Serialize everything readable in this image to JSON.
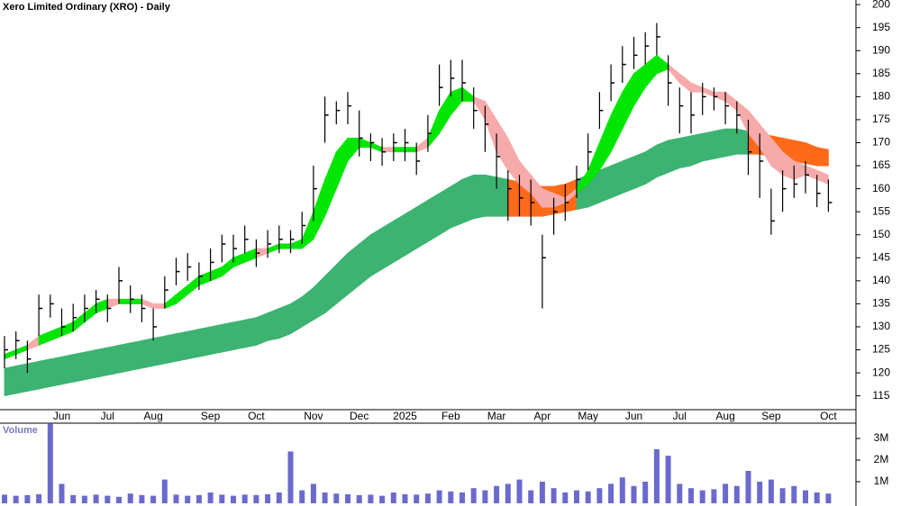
{
  "chart_data": [
    {
      "type": "ohlc",
      "title": "Xero Limited Ordinary (XRO) - Daily",
      "categories": [
        null,
        null,
        null,
        null,
        null,
        "Jun",
        null,
        null,
        null,
        "Jul",
        null,
        null,
        null,
        "Aug",
        null,
        null,
        null,
        null,
        "Sep",
        null,
        null,
        null,
        "Oct",
        null,
        null,
        null,
        null,
        "Nov",
        null,
        null,
        null,
        "Dec",
        null,
        null,
        null,
        "2025",
        null,
        null,
        null,
        "Feb",
        null,
        null,
        null,
        "Mar",
        null,
        null,
        null,
        "Apr",
        null,
        null,
        null,
        "May",
        null,
        null,
        null,
        "Jun",
        null,
        null,
        null,
        "Jul",
        null,
        null,
        null,
        "Aug",
        null,
        null,
        null,
        "Sep",
        null,
        null,
        null,
        null,
        "Oct"
      ],
      "high": [
        128,
        129,
        127,
        137,
        137,
        134,
        135,
        137,
        138,
        137,
        143,
        139,
        137,
        134,
        141,
        145,
        146,
        144,
        147,
        150,
        150,
        152,
        149,
        151,
        152,
        151,
        155,
        165,
        180,
        179,
        181,
        177,
        172,
        171,
        172,
        173,
        170,
        176,
        187,
        188,
        188,
        182,
        178,
        172,
        164,
        163,
        162,
        150,
        158,
        161,
        165,
        172,
        181,
        187,
        191,
        193,
        194,
        196,
        189,
        182,
        181,
        183,
        182,
        181,
        179,
        175,
        172,
        160,
        164,
        165,
        166,
        163,
        162
      ],
      "low": [
        121,
        123,
        120,
        128,
        132,
        128,
        129,
        131,
        133,
        131,
        135,
        133,
        131,
        127,
        134,
        139,
        140,
        138,
        140,
        144,
        144,
        146,
        143,
        145,
        146,
        146,
        148,
        153,
        170,
        174,
        174,
        167,
        166,
        165,
        166,
        166,
        163,
        168,
        178,
        180,
        179,
        173,
        168,
        160,
        153,
        154,
        152,
        134,
        150,
        153,
        158,
        164,
        173,
        179,
        183,
        186,
        187,
        189,
        178,
        172,
        172,
        176,
        177,
        174,
        172,
        163,
        158,
        150,
        155,
        158,
        159,
        156,
        155
      ],
      "close": [
        125,
        127,
        123,
        134,
        135,
        130,
        132,
        134,
        136,
        134,
        140,
        136,
        134,
        130,
        138,
        142,
        143,
        141,
        144,
        148,
        147,
        149,
        146,
        148,
        149,
        149,
        152,
        160,
        176,
        177,
        178,
        171,
        170,
        168,
        170,
        170,
        166,
        172,
        182,
        184,
        183,
        177,
        174,
        167,
        160,
        158,
        157,
        145,
        155,
        157,
        162,
        168,
        177,
        183,
        187,
        189,
        191,
        193,
        183,
        178,
        176,
        180,
        180,
        178,
        176,
        168,
        166,
        153,
        160,
        161,
        163,
        159,
        157
      ],
      "bands": [
        {
          "rise_color": "#3cb371",
          "fall_color": "#ff6a1a",
          "upper": [
            121,
            121.5,
            122,
            122.5,
            123,
            123.5,
            124,
            124.5,
            125,
            125.5,
            126,
            126.5,
            127,
            127.5,
            128,
            128.5,
            129,
            129.5,
            130,
            130.5,
            131,
            131.5,
            132,
            133,
            134,
            135,
            136.5,
            138.5,
            141,
            143.5,
            146,
            148,
            150,
            151.5,
            153,
            154.5,
            156,
            157.5,
            159,
            160.5,
            162,
            163,
            163,
            162.5,
            162,
            161.5,
            161,
            160.5,
            160.5,
            161,
            162,
            163,
            164,
            165,
            166,
            167,
            168,
            169.5,
            170.5,
            171,
            171.5,
            172,
            172.5,
            173,
            173,
            172.5,
            172,
            171.5,
            171,
            170.5,
            170,
            169,
            168.5
          ],
          "lower": [
            115,
            115.5,
            116,
            116.5,
            117,
            117.5,
            118,
            118.5,
            119,
            119.5,
            120,
            120.5,
            121,
            121.5,
            122,
            122.5,
            123,
            123.5,
            124,
            124.5,
            125,
            125.5,
            126,
            127,
            127.5,
            128.5,
            130,
            131.5,
            133,
            135,
            137,
            139,
            141,
            142.5,
            144,
            145.5,
            147,
            148.5,
            150,
            151.5,
            152.5,
            153.5,
            154,
            154,
            154,
            154,
            154,
            154,
            154.5,
            155,
            155.5,
            156,
            157,
            158,
            159,
            160,
            161,
            162.5,
            163.5,
            164.5,
            165,
            166,
            166.5,
            167,
            167.5,
            167.5,
            167.5,
            167,
            166.5,
            166,
            165.5,
            165,
            165
          ]
        },
        {
          "rise_color": "#00e600",
          "fall_color": "#f7aaaa",
          "upper": [
            124,
            125,
            126,
            128,
            129,
            130,
            131,
            133,
            135,
            136,
            136,
            136,
            136,
            135,
            135,
            137,
            139,
            141,
            142,
            143,
            145,
            146,
            147,
            147,
            148,
            148,
            149,
            155,
            162,
            168,
            171,
            171,
            170,
            169,
            169,
            169,
            169,
            171,
            177,
            181,
            182,
            180,
            179,
            175,
            171,
            166,
            163,
            160,
            159,
            158,
            160,
            164,
            170,
            176,
            181,
            185,
            187,
            189,
            187,
            185,
            183,
            182,
            181,
            181,
            179,
            177,
            174,
            171,
            168,
            166,
            165,
            164,
            163
          ],
          "lower": [
            123,
            124,
            125,
            126,
            127,
            128,
            129,
            131,
            133,
            134,
            135,
            135,
            135,
            134,
            134,
            135,
            137,
            139,
            140,
            141,
            143,
            144,
            145,
            146,
            147,
            147,
            147,
            149,
            154,
            160,
            166,
            169,
            169,
            168,
            168,
            168,
            168,
            169,
            172,
            176,
            179,
            179,
            175,
            168,
            164,
            161,
            159,
            156,
            156,
            157,
            159,
            161,
            164,
            168,
            173,
            178,
            182,
            185,
            186,
            183,
            181,
            181,
            180,
            179,
            177,
            172,
            169,
            165,
            163,
            162,
            163,
            162,
            161
          ]
        }
      ],
      "color": "#000000",
      "ylim": [
        112,
        201
      ],
      "yticks": [
        115,
        120,
        125,
        130,
        135,
        140,
        145,
        150,
        155,
        160,
        165,
        170,
        175,
        180,
        185,
        190,
        195,
        200
      ]
    },
    {
      "type": "bar",
      "title": "Volume",
      "color": "#6a6acd",
      "values": [
        400000,
        350000,
        380000,
        420000,
        3700000,
        900000,
        380000,
        350000,
        400000,
        350000,
        300000,
        450000,
        380000,
        350000,
        1100000,
        400000,
        350000,
        380000,
        500000,
        400000,
        350000,
        400000,
        380000,
        420000,
        500000,
        2400000,
        600000,
        900000,
        500000,
        450000,
        420000,
        380000,
        400000,
        350000,
        500000,
        420000,
        400000,
        450000,
        600000,
        550000,
        500000,
        700000,
        600000,
        800000,
        900000,
        1100000,
        600000,
        1000000,
        700000,
        500000,
        600000,
        550000,
        700000,
        900000,
        1200000,
        800000,
        1000000,
        2500000,
        2200000,
        900000,
        700000,
        600000,
        650000,
        900000,
        800000,
        1500000,
        1000000,
        1100000,
        700000,
        800000,
        600000,
        500000,
        450000
      ],
      "ylim": [
        0,
        3750000
      ],
      "yticks": [
        {
          "value": 1000000,
          "label": "1M"
        },
        {
          "value": 2000000,
          "label": "2M"
        },
        {
          "value": 3000000,
          "label": "3M"
        }
      ]
    }
  ]
}
